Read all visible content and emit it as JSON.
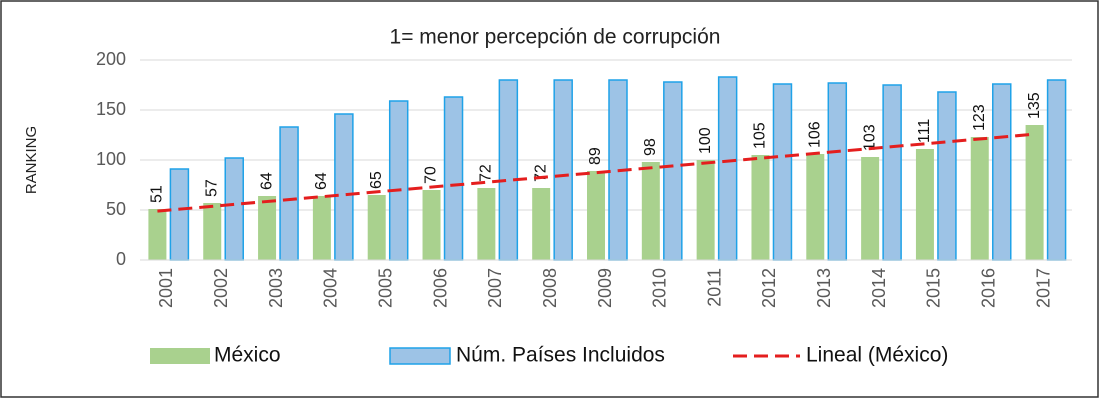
{
  "chart_data": {
    "type": "bar",
    "title": "1= menor percepción de corrupción",
    "y_label": "RANKING",
    "categories": [
      "2001",
      "2002",
      "2003",
      "2004",
      "2005",
      "2006",
      "2007",
      "2008",
      "2009",
      "2010",
      "2011",
      "2012",
      "2013",
      "2014",
      "2015",
      "2016",
      "2017"
    ],
    "series": [
      {
        "name": "México",
        "color": "#a9d18e",
        "values": [
          51,
          57,
          64,
          64,
          65,
          70,
          72,
          72,
          89,
          98,
          100,
          105,
          106,
          103,
          111,
          123,
          135
        ],
        "data_labels": true
      },
      {
        "name": "Núm. Países Incluidos",
        "color": "#9dc3e6",
        "edge_color": "#1fa2e8",
        "values": [
          91,
          102,
          133,
          146,
          159,
          163,
          180,
          180,
          180,
          178,
          183,
          176,
          177,
          175,
          168,
          176,
          180
        ]
      }
    ],
    "trendline": {
      "name": "Lineal (México)",
      "series": 0,
      "color": "#e41e1e",
      "style": "dashed"
    },
    "ylim": [
      0,
      200
    ],
    "yticks": [
      0,
      50,
      100,
      150,
      200
    ],
    "grid": true,
    "legend": "bottom"
  }
}
